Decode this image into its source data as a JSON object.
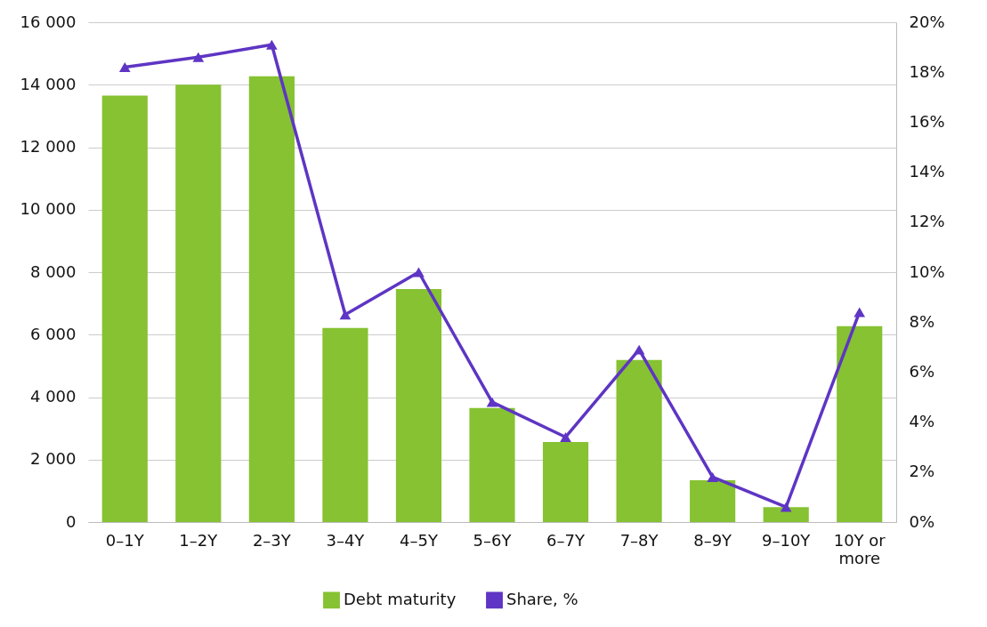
{
  "chart_data": {
    "type": "bar",
    "categories": [
      "0–1Y",
      "1–2Y",
      "2–3Y",
      "3–4Y",
      "4–5Y",
      "5–6Y",
      "6–7Y",
      "7–8Y",
      "8–9Y",
      "9–10Y",
      "10Y or more"
    ],
    "series": [
      {
        "name": "Debt maturity",
        "color": "#86c232",
        "values": [
          13650,
          14000,
          14270,
          6210,
          7460,
          3650,
          2560,
          5190,
          1340,
          480,
          6270
        ]
      },
      {
        "name": "Share, %",
        "type": "line",
        "axis": "y2",
        "color": "#5e35c4",
        "marker": "triangle",
        "values": [
          18.2,
          18.6,
          19.1,
          8.3,
          10.0,
          4.8,
          3.4,
          6.9,
          1.8,
          0.6,
          8.4
        ]
      }
    ],
    "ylim": [
      0,
      16000
    ],
    "yticks": [
      {
        "value": 0,
        "label": "0"
      },
      {
        "value": 2000,
        "label": "2 000"
      },
      {
        "value": 4000,
        "label": "4 000"
      },
      {
        "value": 6000,
        "label": "6 000"
      },
      {
        "value": 8000,
        "label": "8 000"
      },
      {
        "value": 10000,
        "label": "10 000"
      },
      {
        "value": 12000,
        "label": "12 000"
      },
      {
        "value": 14000,
        "label": "14 000"
      },
      {
        "value": 16000,
        "label": "16 000"
      }
    ],
    "y2lim": [
      0,
      20
    ],
    "y2ticks": [
      {
        "value": 0,
        "label": "0%"
      },
      {
        "value": 2,
        "label": "2%"
      },
      {
        "value": 4,
        "label": "4%"
      },
      {
        "value": 6,
        "label": "6%"
      },
      {
        "value": 8,
        "label": "8%"
      },
      {
        "value": 10,
        "label": "10%"
      },
      {
        "value": 12,
        "label": "12%"
      },
      {
        "value": 14,
        "label": "14%"
      },
      {
        "value": 16,
        "label": "16%"
      },
      {
        "value": 18,
        "label": "18%"
      },
      {
        "value": 20,
        "label": "20%"
      }
    ],
    "grid": "y",
    "legend": "bottom"
  }
}
